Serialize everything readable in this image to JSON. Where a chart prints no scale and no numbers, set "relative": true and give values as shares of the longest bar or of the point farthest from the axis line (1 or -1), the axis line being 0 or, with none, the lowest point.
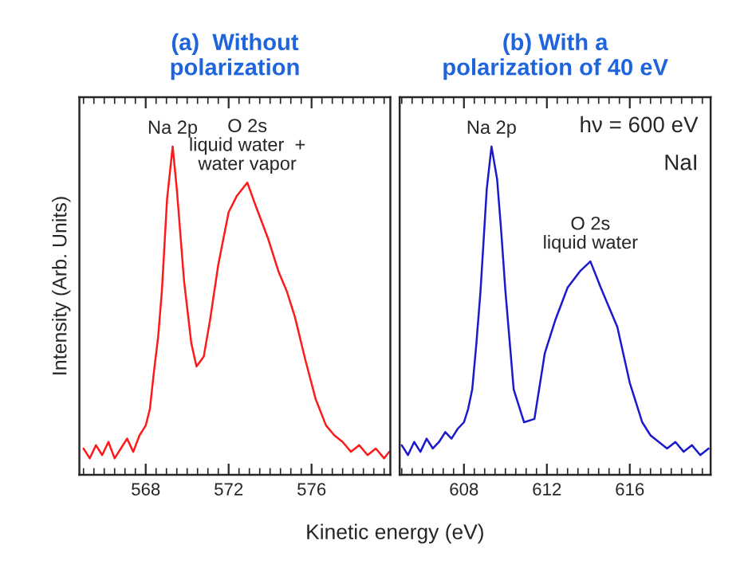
{
  "chart_data": [
    {
      "type": "line",
      "title": "(a)  Without\npolarization",
      "xlabel": "Kinetic energy (eV)",
      "ylabel": "Intensity (Arb. Units)",
      "relative": true,
      "tick_labels": "x",
      "xlim": [
        564.8,
        579.8
      ],
      "xticks": [
        568,
        572,
        576
      ],
      "legend": false,
      "grid": false,
      "annotations": [
        {
          "text": "Na 2p",
          "x": 569.3,
          "y": 1.0
        },
        {
          "text": "O 2s\nliquid water  +\nwater vapor",
          "x": 572.9,
          "y": 0.89
        }
      ],
      "series": [
        {
          "color": "#ff1a1a",
          "x": [
            565.0,
            565.3,
            565.6,
            565.9,
            566.2,
            566.5,
            566.8,
            567.1,
            567.4,
            567.7,
            568.0,
            568.2,
            568.39,
            568.6,
            568.78,
            569.03,
            569.3,
            569.5,
            569.85,
            570.2,
            570.45,
            570.8,
            571.1,
            571.5,
            572.0,
            572.4,
            572.9,
            573.3,
            573.9,
            574.4,
            574.8,
            575.2,
            575.7,
            576.2,
            576.7,
            577.1,
            577.5,
            577.9,
            578.3,
            578.7,
            579.1,
            579.5,
            579.75
          ],
          "values": [
            0.08,
            0.05,
            0.09,
            0.06,
            0.1,
            0.05,
            0.08,
            0.11,
            0.07,
            0.12,
            0.15,
            0.2,
            0.31,
            0.42,
            0.56,
            0.84,
            1.0,
            0.87,
            0.59,
            0.4,
            0.33,
            0.36,
            0.47,
            0.64,
            0.8,
            0.85,
            0.89,
            0.82,
            0.72,
            0.62,
            0.56,
            0.48,
            0.35,
            0.23,
            0.15,
            0.12,
            0.1,
            0.07,
            0.09,
            0.06,
            0.08,
            0.05,
            0.07
          ]
        }
      ]
    },
    {
      "type": "line",
      "title": "(b) With a\npolarization of 40 eV",
      "relative": true,
      "tick_labels": "x",
      "xlim": [
        604.9,
        619.9
      ],
      "xticks": [
        608,
        612,
        616
      ],
      "legend": false,
      "grid": false,
      "annotations": [
        {
          "text": "Na 2p",
          "x": 609.33,
          "y": 1.0
        },
        {
          "text": "O 2s\nliquid water",
          "x": 614.1,
          "y": 0.65
        },
        "hν = 600 eV",
        "NaI"
      ],
      "series": [
        {
          "color": "#1a1acc",
          "x": [
            605.0,
            605.3,
            605.6,
            605.9,
            606.2,
            606.5,
            606.8,
            607.1,
            607.4,
            607.7,
            608.0,
            608.2,
            608.4,
            608.6,
            608.8,
            609.1,
            609.33,
            609.6,
            609.8,
            610.0,
            610.4,
            610.9,
            611.4,
            611.9,
            612.4,
            613.0,
            613.6,
            614.1,
            614.6,
            615.0,
            615.4,
            616.0,
            616.6,
            617.0,
            617.4,
            617.8,
            618.2,
            618.6,
            619.0,
            619.4,
            619.8
          ],
          "values": [
            0.09,
            0.06,
            0.1,
            0.07,
            0.11,
            0.08,
            0.1,
            0.13,
            0.11,
            0.14,
            0.16,
            0.2,
            0.26,
            0.4,
            0.56,
            0.87,
            1.0,
            0.9,
            0.74,
            0.56,
            0.26,
            0.16,
            0.17,
            0.37,
            0.47,
            0.57,
            0.62,
            0.65,
            0.57,
            0.51,
            0.45,
            0.28,
            0.16,
            0.12,
            0.1,
            0.08,
            0.1,
            0.07,
            0.09,
            0.06,
            0.08
          ]
        }
      ]
    }
  ]
}
